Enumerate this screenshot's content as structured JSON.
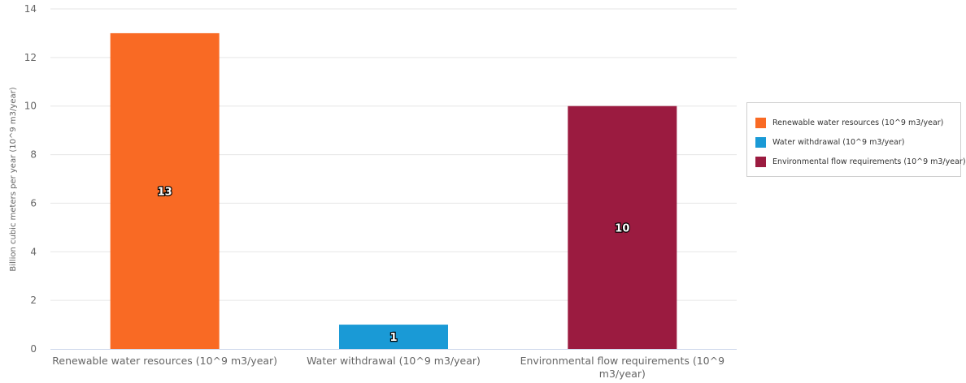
{
  "chart_data": {
    "type": "bar",
    "title": "",
    "xlabel": "",
    "ylabel": "Billion cubic meters per year (10^9 m3/year)",
    "ylim": [
      0,
      14
    ],
    "yticks": [
      "0",
      "2",
      "4",
      "6",
      "8",
      "10",
      "12",
      "14"
    ],
    "grid": true,
    "legend_position": "right",
    "categories": [
      "Renewable water resources (10^9 m3/year)",
      "Water withdrawal (10^9 m3/year)",
      "Environmental flow requirements (10^9 m3/year)"
    ],
    "values": [
      13,
      1,
      10
    ],
    "data_labels": [
      "13",
      "1",
      "10"
    ],
    "colors": [
      "#f96a24",
      "#1a9ad6",
      "#9b1b40"
    ],
    "legend": [
      {
        "label": "Renewable water resources (10^9 m3/year)",
        "color": "#f96a24"
      },
      {
        "label": "Water withdrawal (10^9 m3/year)",
        "color": "#1a9ad6"
      },
      {
        "label": "Environmental flow requirements (10^9 m3/year)",
        "color": "#9b1b40"
      }
    ]
  }
}
